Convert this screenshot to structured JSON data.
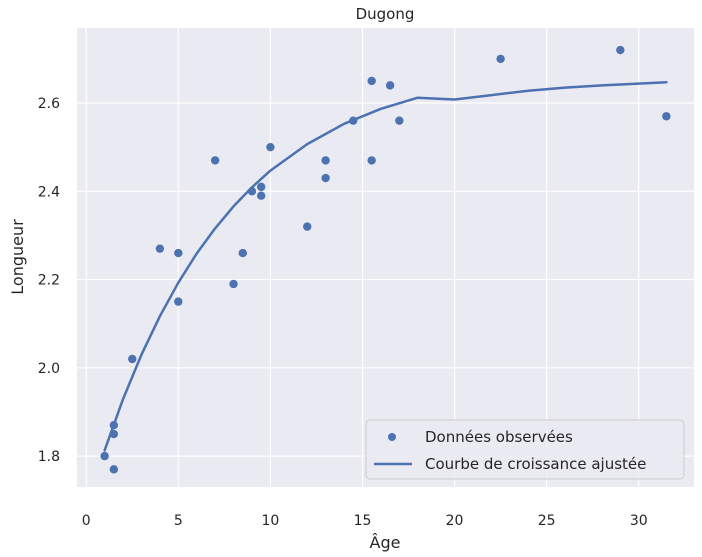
{
  "chart_data": {
    "type": "scatter",
    "title": "Dugong",
    "xlabel": "Âge",
    "ylabel": "Longueur",
    "xlim": [
      -0.5,
      33.0
    ],
    "ylim": [
      1.73,
      2.77
    ],
    "xticks": [
      0,
      5,
      10,
      15,
      20,
      25,
      30
    ],
    "yticks": [
      1.8,
      2.0,
      2.2,
      2.4,
      2.6
    ],
    "ytick_labels": [
      "1.8",
      "2.0",
      "2.2",
      "2.4",
      "2.6"
    ],
    "grid": true,
    "legend_position": "bottom-right",
    "colors": {
      "series": "#4c72b0",
      "background": "#eaeaf2",
      "grid": "#ffffff"
    },
    "series": [
      {
        "name": "Données observées",
        "kind": "scatter",
        "x": [
          1.0,
          1.5,
          1.5,
          1.5,
          2.5,
          4.0,
          5.0,
          5.0,
          7.0,
          8.0,
          8.5,
          9.0,
          9.5,
          9.5,
          10.0,
          12.0,
          13.0,
          13.0,
          14.5,
          15.5,
          15.5,
          16.5,
          17.0,
          22.5,
          29.0,
          31.5
        ],
        "y": [
          1.8,
          1.85,
          1.87,
          1.77,
          2.02,
          2.27,
          2.15,
          2.26,
          2.47,
          2.19,
          2.26,
          2.4,
          2.39,
          2.41,
          2.5,
          2.32,
          2.43,
          2.47,
          2.56,
          2.65,
          2.47,
          2.64,
          2.56,
          2.7,
          2.72,
          2.57
        ]
      },
      {
        "name": "Courbe de croissance ajustée",
        "kind": "line",
        "x": [
          1,
          2,
          3,
          4,
          5,
          6,
          7,
          8,
          9,
          10,
          12,
          14,
          16,
          18,
          20,
          22,
          24,
          26,
          28,
          30,
          31.5
        ],
        "y": [
          1.813,
          1.929,
          2.03,
          2.117,
          2.193,
          2.259,
          2.316,
          2.366,
          2.409,
          2.447,
          2.507,
          2.553,
          2.587,
          2.612,
          2.608,
          2.618,
          2.628,
          2.635,
          2.64,
          2.644,
          2.647
        ]
      }
    ]
  }
}
